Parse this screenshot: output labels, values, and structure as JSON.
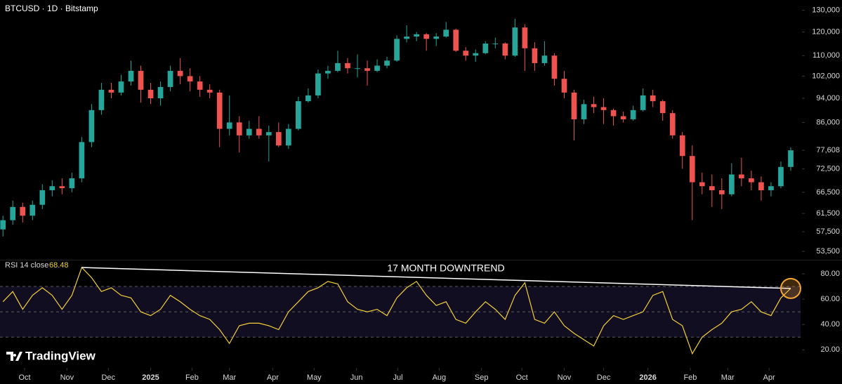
{
  "header": {
    "symbol": "BTCUSD · 1D · Bitstamp"
  },
  "watermark": "TradingView",
  "chart_data": [
    {
      "type": "candlestick",
      "log_scale": true,
      "up_color": "#26a69a",
      "down_color": "#ef5350",
      "xlim": [
        -0.3,
        81
      ],
      "ylim": [
        52000,
        135000
      ],
      "yticks": [
        {
          "value": 53500,
          "label": "53,500"
        },
        {
          "value": 57500,
          "label": "57,500"
        },
        {
          "value": 61500,
          "label": "61,500"
        },
        {
          "value": 66500,
          "label": "66,500"
        },
        {
          "value": 72500,
          "label": "72,500"
        },
        {
          "value": 77608,
          "label": "77,608"
        },
        {
          "value": 86000,
          "label": "86,000"
        },
        {
          "value": 94000,
          "label": "94,000"
        },
        {
          "value": 102000,
          "label": "102,000"
        },
        {
          "value": 110000,
          "label": "110,000"
        },
        {
          "value": 120000,
          "label": "120,000"
        },
        {
          "value": 130000,
          "label": "130,000"
        }
      ],
      "open": [
        58000,
        60000,
        63000,
        61000,
        63500,
        67000,
        68000,
        67500,
        70000,
        80000,
        90000,
        97000,
        96000,
        100000,
        104000,
        97000,
        94000,
        98000,
        104000,
        102000,
        100000,
        97000,
        96000,
        84000,
        86000,
        82000,
        84000,
        82000,
        83000,
        79000,
        84000,
        93000,
        95000,
        103000,
        104000,
        107000,
        105000,
        105000,
        104000,
        106000,
        108000,
        117000,
        118000,
        119000,
        117000,
        118000,
        121000,
        112000,
        110000,
        111000,
        115000,
        115000,
        110000,
        122000,
        113000,
        107000,
        110000,
        101000,
        96000,
        87000,
        92000,
        91000,
        90000,
        88000,
        87000,
        90000,
        95000,
        93000,
        89000,
        82000,
        76000,
        69000,
        68000,
        67000,
        66000,
        71000,
        70000,
        69000,
        67000,
        68000,
        73000
      ],
      "high": [
        61000,
        64500,
        64000,
        64500,
        68500,
        69500,
        70000,
        71500,
        81500,
        92000,
        99500,
        99500,
        102500,
        108000,
        106000,
        99500,
        100000,
        106000,
        109000,
        105000,
        102000,
        99000,
        97000,
        95000,
        88000,
        86500,
        88000,
        85000,
        86000,
        85500,
        94500,
        97500,
        104500,
        106000,
        112000,
        109000,
        110500,
        108000,
        108500,
        109500,
        118500,
        123000,
        120000,
        119500,
        119500,
        124500,
        121500,
        113500,
        112500,
        116000,
        117500,
        115500,
        126000,
        123500,
        115500,
        116000,
        111000,
        104000,
        97000,
        93500,
        94500,
        94000,
        90500,
        89500,
        91500,
        97500,
        97000,
        93500,
        90000,
        83000,
        79000,
        71500,
        71000,
        70000,
        74000,
        75500,
        72000,
        70500,
        69000,
        74500,
        78500
      ],
      "low": [
        56500,
        59000,
        59500,
        60000,
        62500,
        65500,
        66000,
        66500,
        69000,
        78500,
        88500,
        94000,
        95000,
        98500,
        92500,
        92000,
        91500,
        96500,
        99000,
        96500,
        94500,
        94000,
        78500,
        82000,
        77000,
        81000,
        81000,
        74500,
        78500,
        78000,
        83500,
        92500,
        94000,
        101000,
        103500,
        103000,
        101500,
        98500,
        103500,
        105000,
        107500,
        115500,
        116000,
        112000,
        114000,
        117500,
        111500,
        108000,
        107500,
        110500,
        113000,
        108500,
        109500,
        104000,
        104000,
        106000,
        98500,
        94000,
        80500,
        85500,
        89000,
        85500,
        85000,
        86000,
        86500,
        89500,
        91000,
        86500,
        81000,
        72500,
        60000,
        66000,
        63000,
        62500,
        65500,
        68000,
        67000,
        64500,
        65500,
        67500,
        72000
      ],
      "close": [
        60000,
        63000,
        61000,
        63500,
        67000,
        68000,
        67500,
        70000,
        80000,
        90000,
        97000,
        96000,
        100000,
        104000,
        97000,
        94000,
        98000,
        104000,
        102000,
        100000,
        97000,
        96000,
        84000,
        86000,
        82000,
        84000,
        82000,
        83000,
        79000,
        84000,
        93000,
        95000,
        103000,
        104000,
        107000,
        105000,
        105000,
        104000,
        106000,
        108000,
        117000,
        118000,
        119000,
        117000,
        118000,
        121000,
        112000,
        110000,
        111000,
        115000,
        115000,
        110000,
        122000,
        113000,
        107000,
        110000,
        101000,
        96000,
        87000,
        92000,
        91000,
        90000,
        88000,
        87000,
        90000,
        95000,
        93000,
        89000,
        82000,
        76000,
        69000,
        68000,
        67000,
        66000,
        71000,
        70000,
        69000,
        67000,
        68000,
        73000,
        77608
      ]
    },
    {
      "type": "line",
      "title": "RSI 14 close",
      "color": "#f2cf3a",
      "band_color": "#120e22",
      "band_lines": [
        30,
        50,
        70
      ],
      "xlim": [
        -0.3,
        81
      ],
      "ylim": [
        8,
        90
      ],
      "yticks": [
        {
          "value": 20,
          "label": "20.00"
        },
        {
          "value": 40,
          "label": "40.00"
        },
        {
          "value": 60,
          "label": "60.00"
        },
        {
          "value": 80,
          "label": "80.00"
        }
      ],
      "xticks": [
        {
          "value": 2.2,
          "label": "Oct"
        },
        {
          "value": 6.5,
          "label": "Nov"
        },
        {
          "value": 10.7,
          "label": "Dec"
        },
        {
          "value": 15.0,
          "label": "2025"
        },
        {
          "value": 19.2,
          "label": "Feb"
        },
        {
          "value": 23.0,
          "label": "Mar"
        },
        {
          "value": 27.4,
          "label": "Apr"
        },
        {
          "value": 31.6,
          "label": "May"
        },
        {
          "value": 35.9,
          "label": "Jun"
        },
        {
          "value": 40.1,
          "label": "Jul"
        },
        {
          "value": 44.3,
          "label": "Aug"
        },
        {
          "value": 48.6,
          "label": "Sep"
        },
        {
          "value": 52.7,
          "label": "Oct"
        },
        {
          "value": 57.0,
          "label": "Nov"
        },
        {
          "value": 61.0,
          "label": "Dec"
        },
        {
          "value": 65.5,
          "label": "2026"
        },
        {
          "value": 69.8,
          "label": "Feb"
        },
        {
          "value": 73.6,
          "label": "Mar"
        },
        {
          "value": 77.8,
          "label": "Apr"
        }
      ],
      "values": [
        58,
        66,
        52,
        63,
        69,
        63,
        52,
        63,
        85,
        77,
        66,
        69,
        63,
        61,
        50,
        47,
        52,
        63,
        58,
        52,
        47,
        44,
        36,
        25,
        39,
        41,
        41,
        39,
        36,
        50,
        58,
        66,
        69,
        74,
        72,
        58,
        52,
        50,
        52,
        47,
        61,
        69,
        74,
        63,
        55,
        58,
        44,
        41,
        50,
        58,
        52,
        44,
        63,
        73,
        44,
        41,
        50,
        39,
        33,
        28,
        23,
        39,
        47,
        44,
        47,
        50,
        63,
        66,
        44,
        39,
        17,
        30,
        36,
        41,
        50,
        52,
        58,
        50,
        47,
        61,
        68.48
      ],
      "annotation": "17 MONTH DOWNTREND",
      "trendline": {
        "x": [
          8,
          80
        ],
        "y": [
          85,
          68.48
        ]
      }
    }
  ]
}
